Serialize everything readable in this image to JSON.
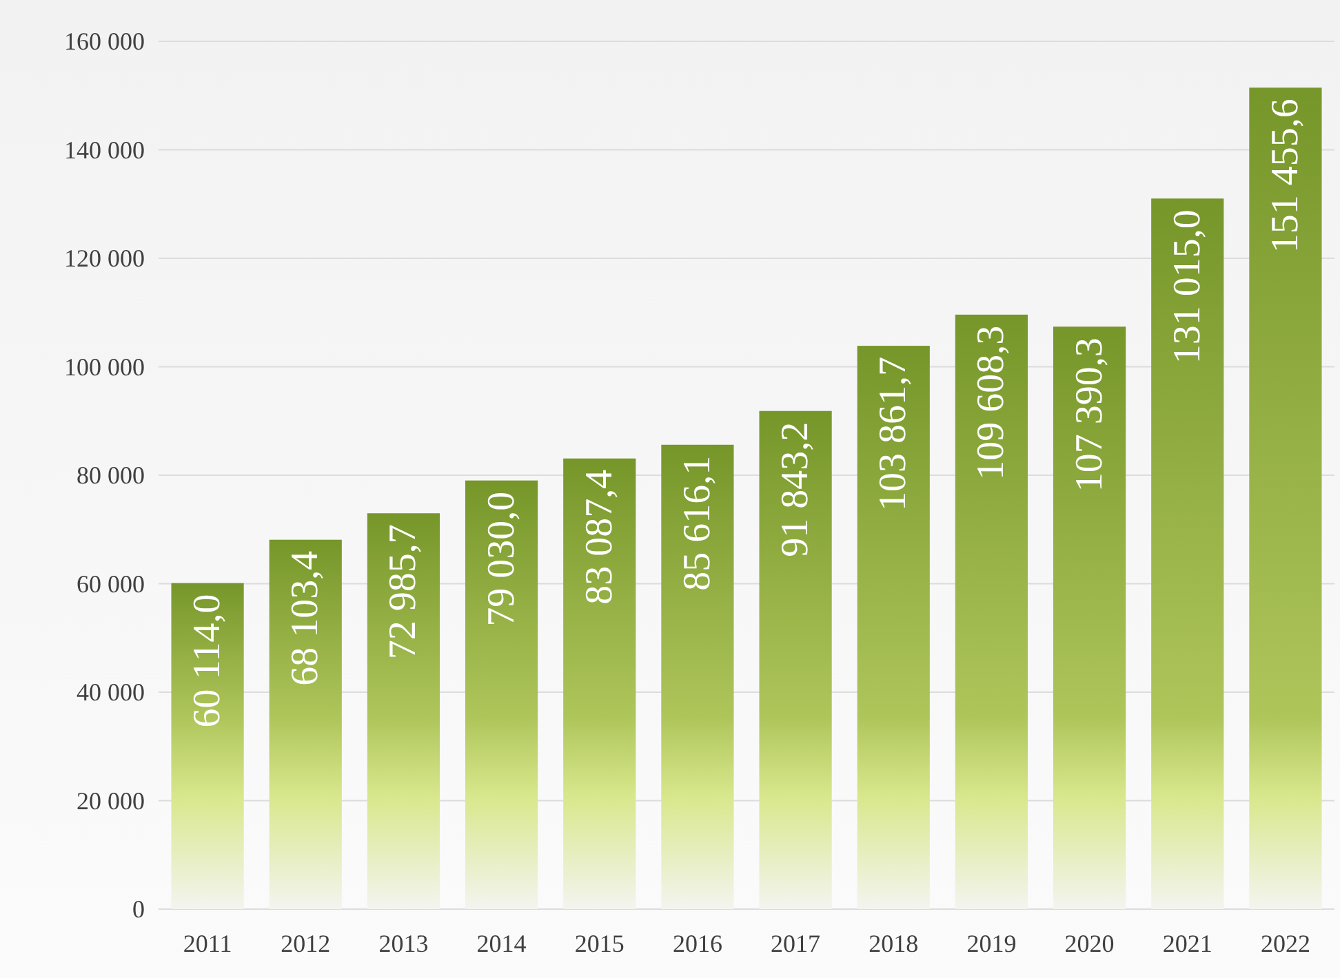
{
  "chart_data": {
    "type": "bar",
    "categories": [
      "2011",
      "2012",
      "2013",
      "2014",
      "2015",
      "2016",
      "2017",
      "2018",
      "2019",
      "2020",
      "2021",
      "2022"
    ],
    "values": [
      60114.0,
      68103.4,
      72985.7,
      79030.0,
      83087.4,
      85616.1,
      91843.2,
      103861.7,
      109608.3,
      107390.3,
      131015.0,
      151455.6
    ],
    "value_labels": [
      "60 114,0",
      "68 103,4",
      "72 985,7",
      "79 030,0",
      "83 087,4",
      "85 616,1",
      "91 843,2",
      "103 861,7",
      "109 608,3",
      "107 390,3",
      "131 015,0",
      "151 455,6"
    ],
    "color": "#76962a",
    "ylim": [
      0,
      160000
    ],
    "yticks": [
      {
        "value": 0,
        "label": "0"
      },
      {
        "value": 20000,
        "label": "20 000"
      },
      {
        "value": 40000,
        "label": "40 000"
      },
      {
        "value": 60000,
        "label": "60 000"
      },
      {
        "value": 80000,
        "label": "80 000"
      },
      {
        "value": 100000,
        "label": "100 000"
      },
      {
        "value": 120000,
        "label": "120 000"
      },
      {
        "value": 140000,
        "label": "140 000"
      },
      {
        "value": 160000,
        "label": "160 000"
      }
    ],
    "grid": "y"
  }
}
